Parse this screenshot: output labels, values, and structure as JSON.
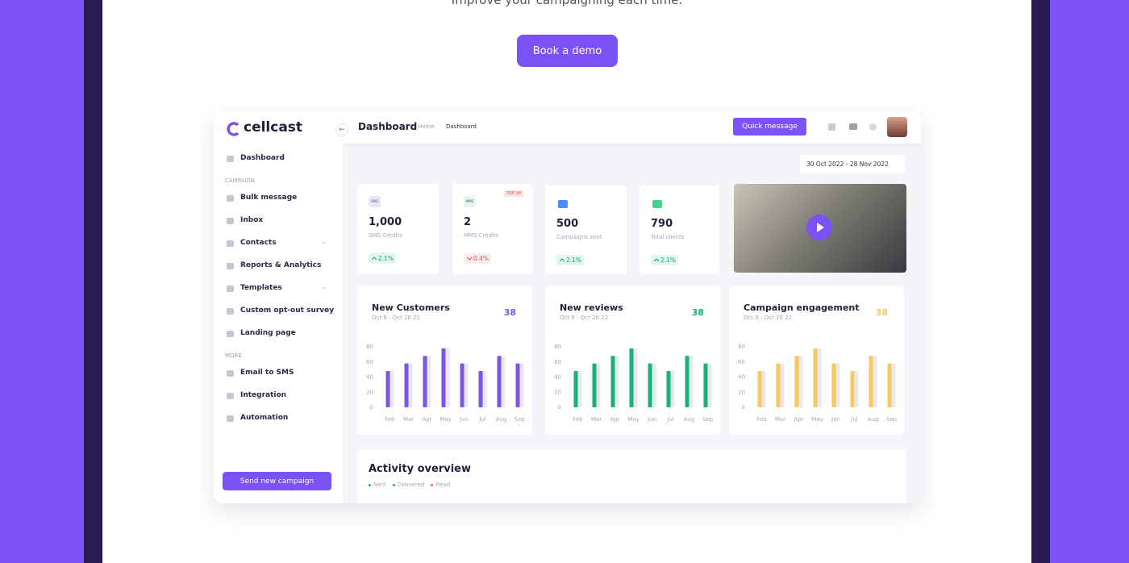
{
  "intro": {
    "subtitle": "Improve your campaigning each time.",
    "cta": "Book a demo"
  },
  "sidebar": {
    "logo": "cellcast",
    "top_items": [
      "Dashboard"
    ],
    "campaign_heading": "CAMPAIGN",
    "campaign_items": [
      "Bulk message",
      "Inbox",
      "Contacts",
      "Reports & Analytics",
      "Templates",
      "Custom opt-out survey",
      "Landing page"
    ],
    "more_heading": "MORE",
    "more_items": [
      "Email to SMS",
      "Integration",
      "Automation"
    ],
    "button": "Send new campaign"
  },
  "header": {
    "title": "Dashboard",
    "breadcrumb": [
      "Home",
      "Dashboard"
    ],
    "button": "Quick message"
  },
  "date_range": "30 Oct 2022 - 28 Nov 2022",
  "stats": [
    {
      "icon": "SMS",
      "value": "1,000",
      "label": "SMS Credits",
      "change": "2.1%"
    },
    {
      "icon": "MMS",
      "tag": "TOP UP",
      "value": "2",
      "label": "MMS Credits",
      "change": "0.4%"
    },
    {
      "value": "500",
      "label": "Campaigns sent",
      "change": "2.1%"
    },
    {
      "value": "790",
      "label": "Total clients",
      "change": "2.1%"
    }
  ],
  "charts": [
    {
      "type": "bar",
      "title": "New Customers",
      "subtitle": "Oct 8 - Oct 26 22",
      "total": 38,
      "categories": [
        "Feb",
        "Mar",
        "Apr",
        "May",
        "Jun",
        "Jul",
        "Aug",
        "Sep"
      ],
      "series": [
        {
          "color": "#7b55e6",
          "values": [
            48,
            58,
            68,
            78,
            58,
            48,
            68,
            58
          ]
        },
        {
          "color": "#e8e8ef",
          "values": [
            48,
            58,
            68,
            78,
            58,
            48,
            68,
            58
          ]
        }
      ],
      "ylim": [
        0,
        80
      ],
      "yticks": [
        0,
        20,
        40,
        60,
        80
      ]
    },
    {
      "type": "bar",
      "title": "New reviews",
      "subtitle": "Oct 8 - Oct 26 22",
      "total": 38,
      "categories": [
        "Feb",
        "Mar",
        "Apr",
        "May",
        "Jun",
        "Jul",
        "Aug",
        "Sep"
      ],
      "series": [
        {
          "color": "#16b27a",
          "values": [
            48,
            58,
            68,
            78,
            58,
            48,
            68,
            58
          ]
        },
        {
          "color": "#e8e8ef",
          "values": [
            48,
            58,
            68,
            78,
            58,
            48,
            68,
            58
          ]
        }
      ],
      "ylim": [
        0,
        80
      ],
      "yticks": [
        0,
        20,
        40,
        60,
        80
      ]
    },
    {
      "type": "bar",
      "title": "Campaign engagement",
      "subtitle": "Oct 8 - Oct 26 22",
      "total": 38,
      "categories": [
        "Feb",
        "Mar",
        "Apr",
        "May",
        "Jun",
        "Jul",
        "Aug",
        "Sep"
      ],
      "series": [
        {
          "color": "#f5ca5c",
          "values": [
            48,
            58,
            68,
            78,
            58,
            48,
            68,
            58
          ]
        },
        {
          "color": "#e8e8ef",
          "values": [
            48,
            58,
            68,
            78,
            58,
            48,
            68,
            58
          ]
        }
      ],
      "ylim": [
        0,
        80
      ],
      "yticks": [
        0,
        20,
        40,
        60,
        80
      ]
    }
  ],
  "activity": {
    "title": "Activity overview",
    "legend": [
      {
        "name": "Sent",
        "color": "#16b27a"
      },
      {
        "name": "Delivered",
        "color": "#3b82f6"
      },
      {
        "name": "Read",
        "color": "#f05a7e"
      }
    ]
  }
}
